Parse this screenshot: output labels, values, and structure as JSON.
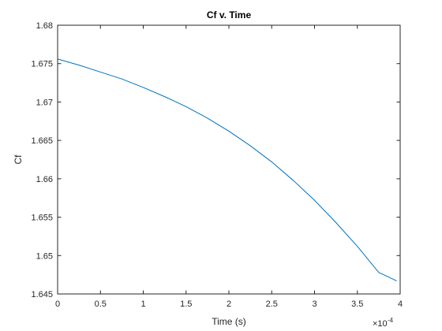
{
  "chart_data": {
    "type": "line",
    "title": "Cf v. Time",
    "xlabel": "Time (s)",
    "ylabel": "Cf",
    "xlim": [
      0,
      4
    ],
    "ylim": [
      1.645,
      1.68
    ],
    "x_exponent_label": "×10",
    "x_exponent": "-4",
    "x_ticks": [
      "0",
      "0.5",
      "1",
      "1.5",
      "2",
      "2.5",
      "3",
      "3.5",
      "4"
    ],
    "y_ticks": [
      "1.645",
      "1.65",
      "1.655",
      "1.66",
      "1.665",
      "1.67",
      "1.675",
      "1.68"
    ],
    "grid": false,
    "line_color": "#0072BD",
    "series": [
      {
        "x": [
          0,
          0.25,
          0.5,
          0.75,
          1.0,
          1.25,
          1.5,
          1.75,
          2.0,
          2.25,
          2.5,
          2.75,
          3.0,
          3.25,
          3.5,
          3.75,
          3.96
        ],
        "values": [
          1.6756,
          1.6748,
          1.6739,
          1.673,
          1.6719,
          1.6707,
          1.6694,
          1.6679,
          1.6662,
          1.6643,
          1.6622,
          1.6598,
          1.6572,
          1.6543,
          1.6512,
          1.6478,
          1.6467
        ]
      }
    ]
  }
}
